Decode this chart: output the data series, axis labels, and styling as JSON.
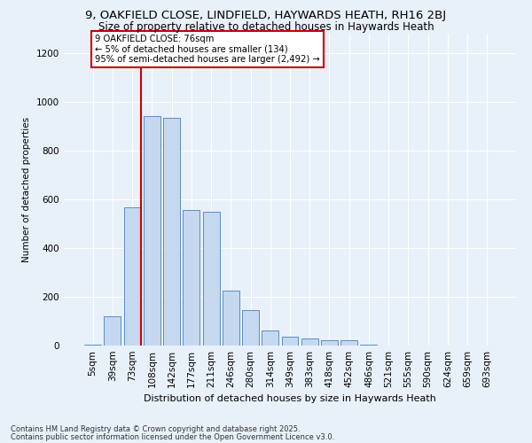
{
  "title1": "9, OAKFIELD CLOSE, LINDFIELD, HAYWARDS HEATH, RH16 2BJ",
  "title2": "Size of property relative to detached houses in Haywards Heath",
  "xlabel": "Distribution of detached houses by size in Haywards Heath",
  "ylabel": "Number of detached properties",
  "bin_labels": [
    "5sqm",
    "39sqm",
    "73sqm",
    "108sqm",
    "142sqm",
    "177sqm",
    "211sqm",
    "246sqm",
    "280sqm",
    "314sqm",
    "349sqm",
    "383sqm",
    "418sqm",
    "452sqm",
    "486sqm",
    "521sqm",
    "555sqm",
    "590sqm",
    "624sqm",
    "659sqm",
    "693sqm"
  ],
  "bar_values": [
    5,
    120,
    565,
    940,
    935,
    555,
    550,
    225,
    145,
    60,
    35,
    30,
    20,
    20,
    5,
    0,
    0,
    0,
    0,
    0,
    0
  ],
  "bar_color": "#c5d8f0",
  "bar_edge_color": "#5a8fc3",
  "red_line_index": 2,
  "annotation_title": "9 OAKFIELD CLOSE: 76sqm",
  "annotation_line1": "← 5% of detached houses are smaller (134)",
  "annotation_line2": "95% of semi-detached houses are larger (2,492) →",
  "annotation_box_color": "#ffffff",
  "annotation_border_color": "#cc0000",
  "ylim": [
    0,
    1280
  ],
  "yticks": [
    0,
    200,
    400,
    600,
    800,
    1000,
    1200
  ],
  "footer1": "Contains HM Land Registry data © Crown copyright and database right 2025.",
  "footer2": "Contains public sector information licensed under the Open Government Licence v3.0.",
  "bg_color": "#e8f0fa",
  "plot_bg_color": "#e8f0fa",
  "grid_color": "#ffffff",
  "title1_fontsize": 9.5,
  "title2_fontsize": 8.5,
  "xlabel_fontsize": 8.0,
  "ylabel_fontsize": 7.5,
  "tick_fontsize": 7.5,
  "footer_fontsize": 6.0
}
